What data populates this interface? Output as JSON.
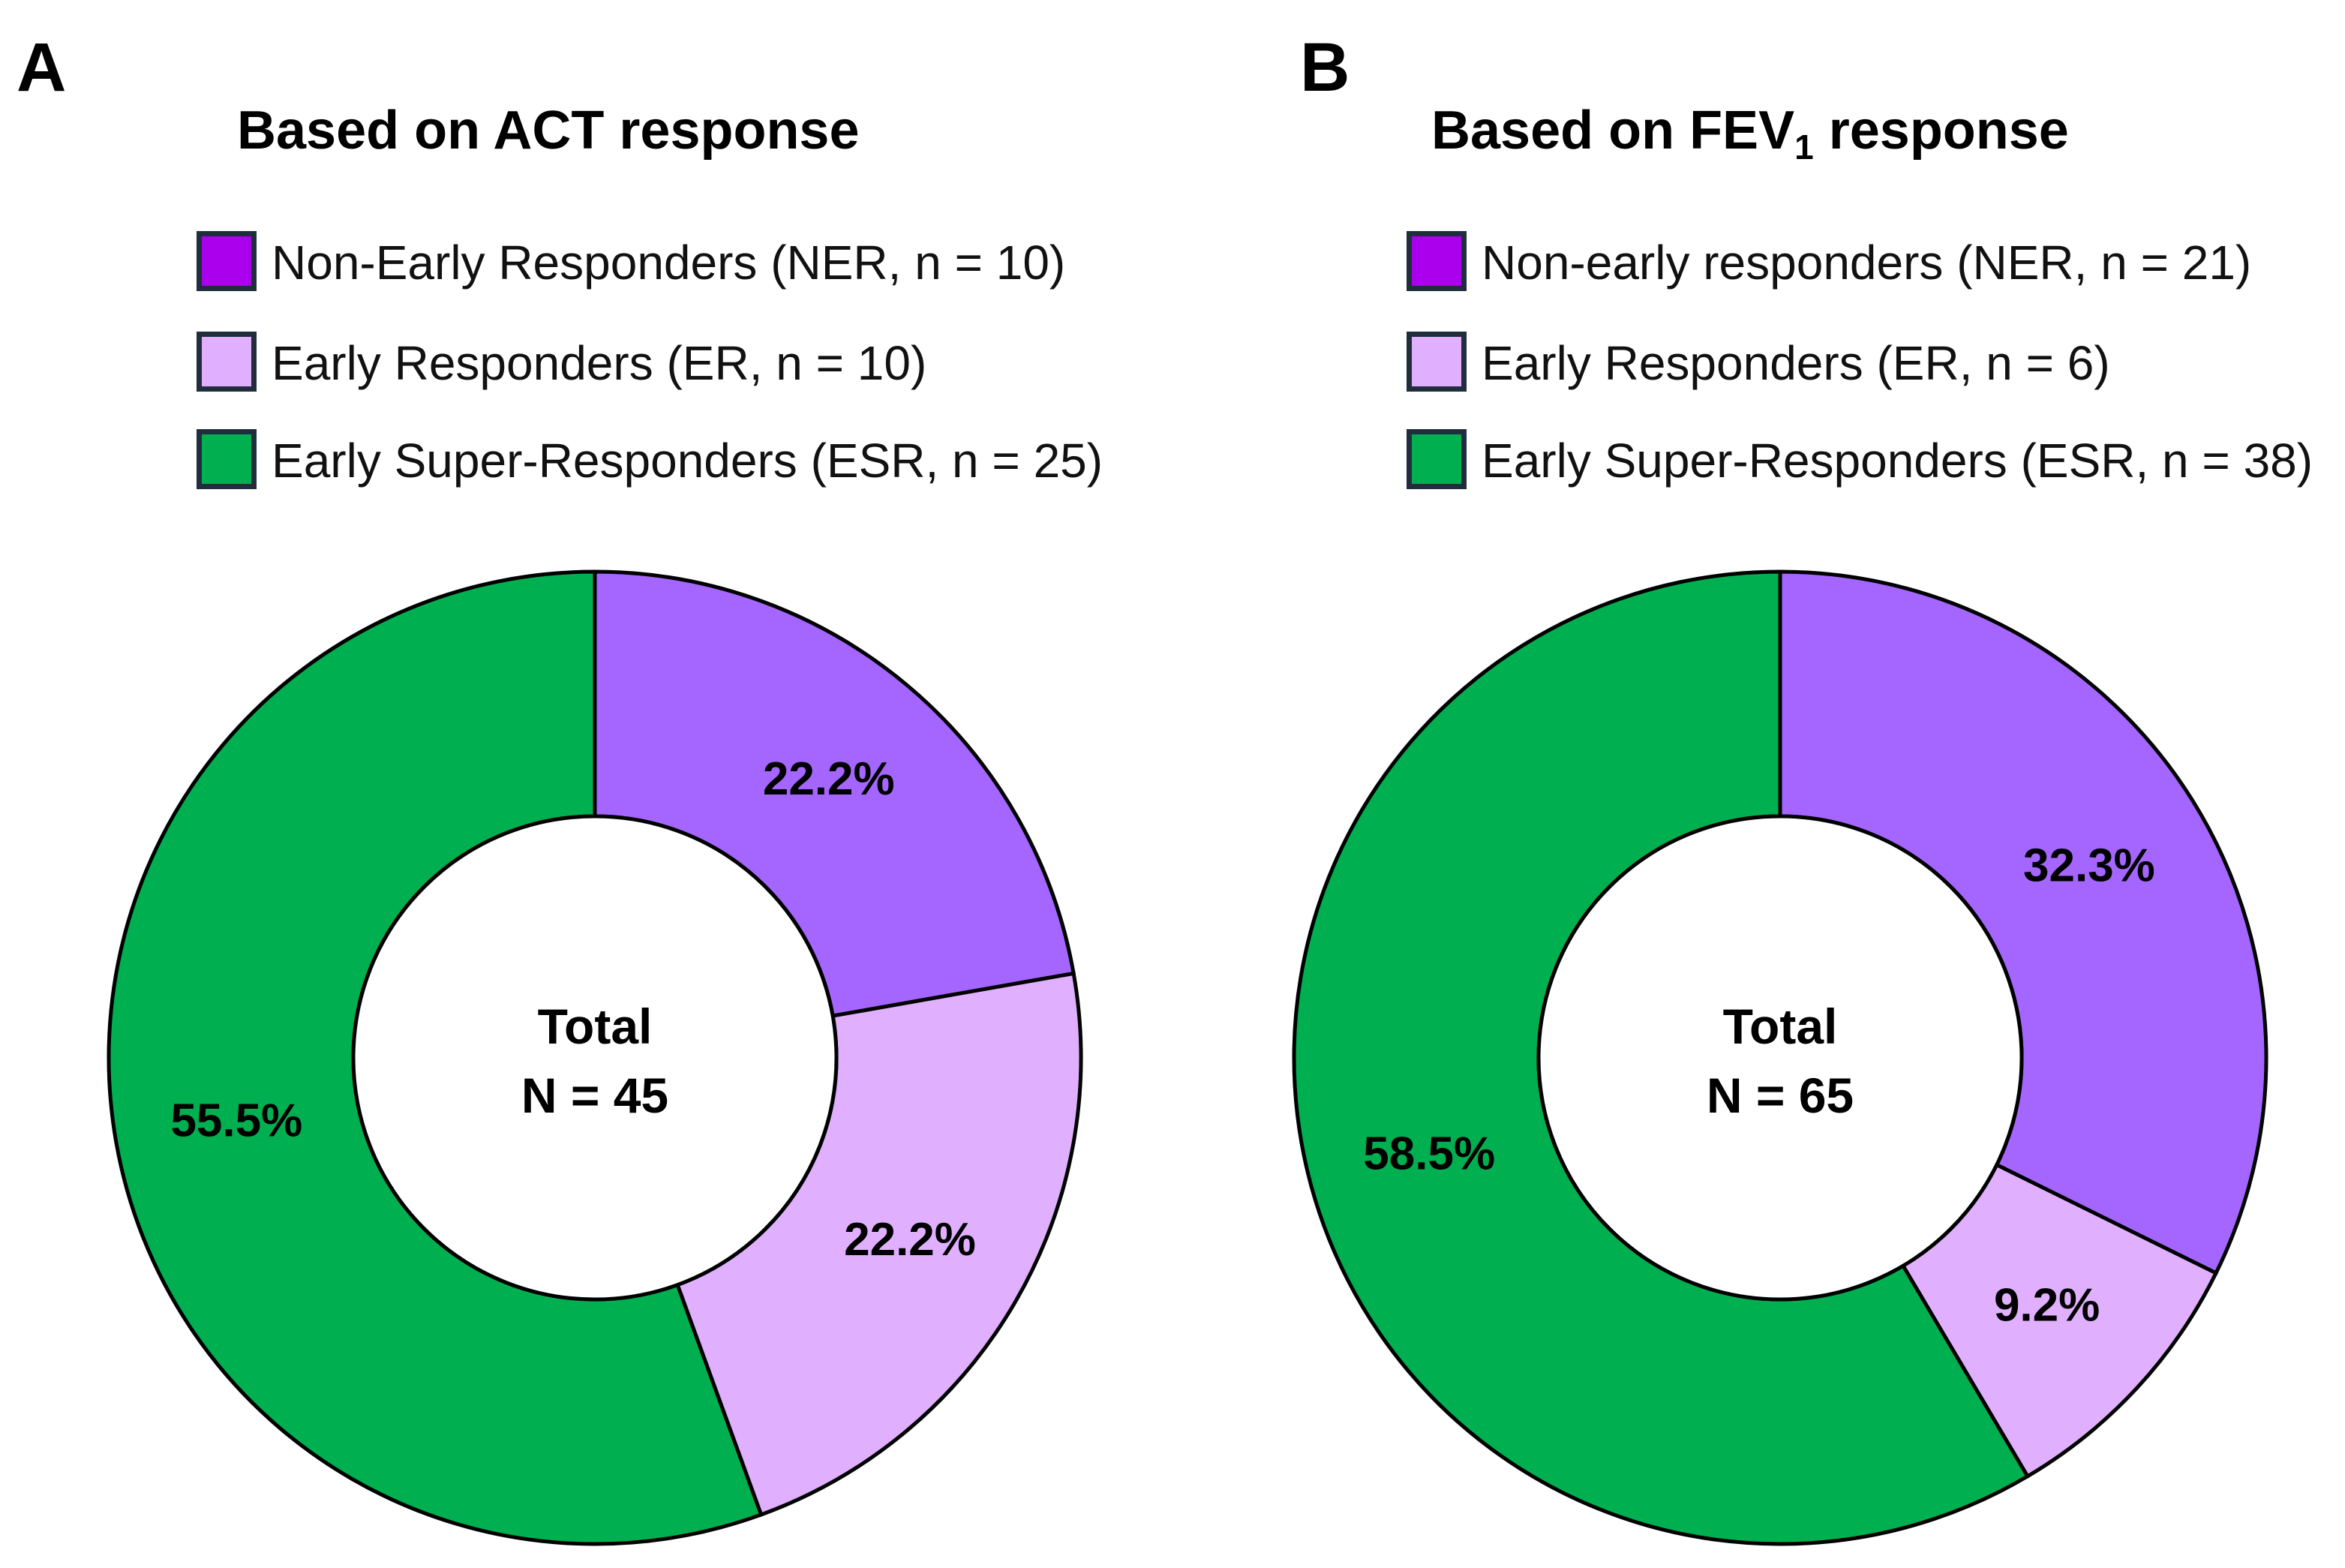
{
  "colors": {
    "ner": "#a566ff",
    "ner_legend": "#aa00ee",
    "er": "#e0b0ff",
    "esr": "#00b050",
    "outline": "#000000"
  },
  "chart_data": [
    {
      "type": "pie",
      "panel": "A",
      "title": "Based on ACT response",
      "legend": [
        "Non-Early Responders (NER, n = 10)",
        "Early Responders (ER, n = 10)",
        "Early Super-Responders (ESR, n = 25)"
      ],
      "center": [
        "Total",
        "N = 45"
      ],
      "slices": [
        {
          "key": "ner",
          "value": 22.2,
          "label": "22.2%"
        },
        {
          "key": "er",
          "value": 22.2,
          "label": "22.2%"
        },
        {
          "key": "esr",
          "value": 55.5,
          "label": "55.5%"
        }
      ]
    },
    {
      "type": "pie",
      "panel": "B",
      "title": "Based on FEV",
      "title_sub": "1",
      "title_suffix": " response",
      "legend": [
        "Non-early responders (NER, n = 21)",
        "Early Responders (ER, n = 6)",
        "Early Super-Responders (ESR, n = 38)"
      ],
      "center": [
        "Total",
        "N = 65"
      ],
      "slices": [
        {
          "key": "ner",
          "value": 32.3,
          "label": "32.3%"
        },
        {
          "key": "er",
          "value": 9.2,
          "label": "9.2%"
        },
        {
          "key": "esr",
          "value": 58.5,
          "label": "58.5%"
        }
      ]
    }
  ]
}
